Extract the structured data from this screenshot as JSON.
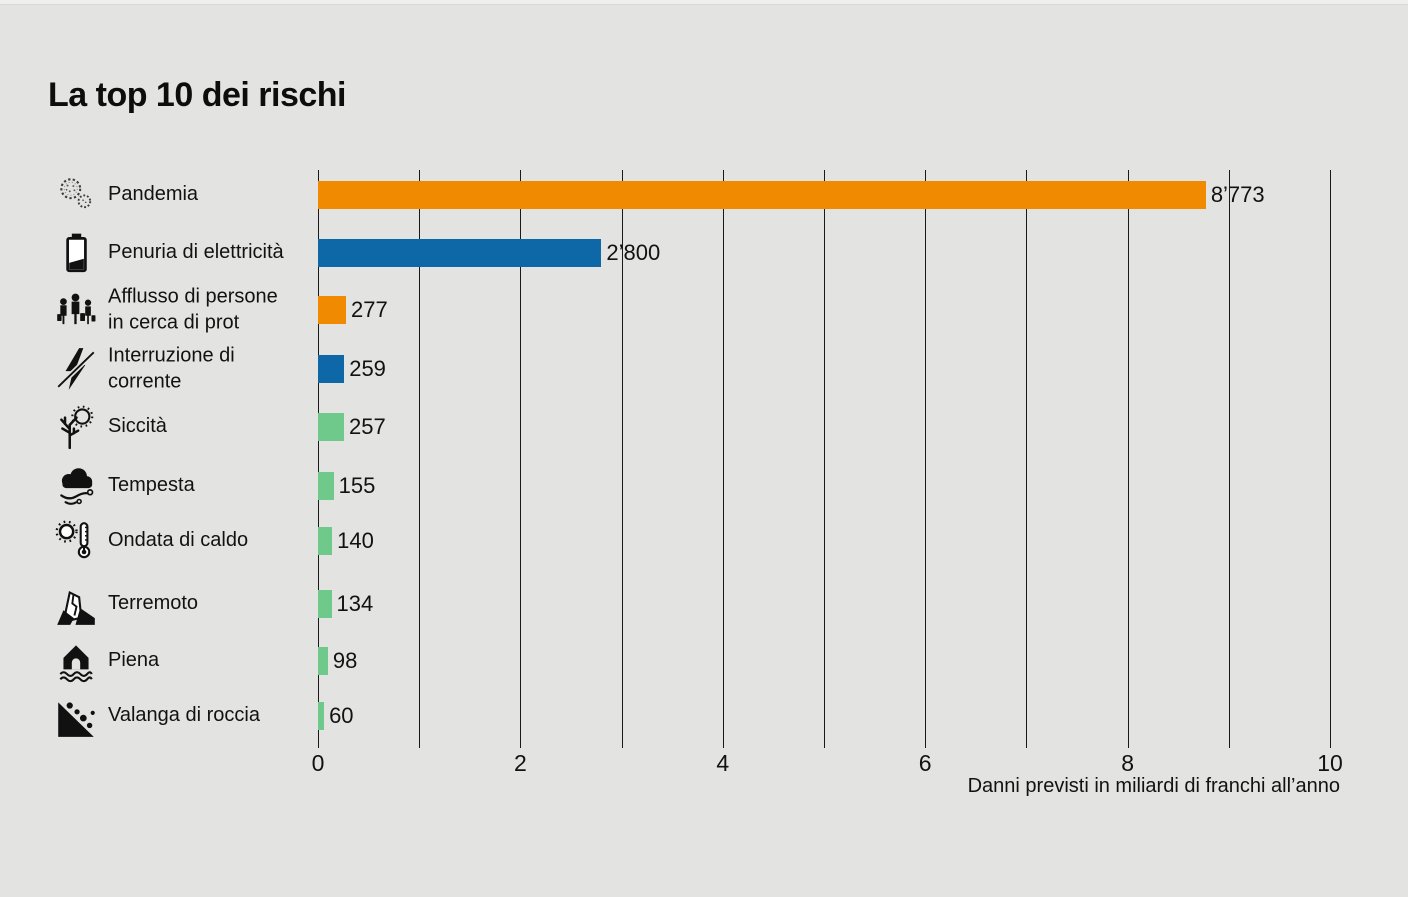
{
  "page": {
    "title": "La top 10 dei rischi"
  },
  "colors": {
    "background": "#E3E3E1",
    "orange": "#F08A00",
    "blue": "#0E67A6",
    "green": "#6EC98B",
    "text": "#121212",
    "gridline": "#1A1A1A"
  },
  "chart_data": {
    "type": "bar",
    "orientation": "horizontal",
    "title": "La top 10 dei rischi",
    "xlabel": "Danni previsti in miliardi di franchi all’anno",
    "xlim": [
      0,
      10
    ],
    "grid": "vertical-only",
    "legend": "none",
    "xticks": [
      0,
      1,
      2,
      3,
      4,
      5,
      6,
      7,
      8,
      9,
      10
    ],
    "xtick_labels": [
      "0",
      "",
      "2",
      "",
      "4",
      "",
      "6",
      "",
      "8",
      "",
      "10"
    ],
    "categories": [
      "Pandemia",
      "Penuria di elettricità",
      "Afflusso di persone in cerca di prot",
      "Interruzione di corrente",
      "Siccità",
      "Tempesta",
      "Ondata di caldo",
      "Terremoto",
      "Piena",
      "Valanga di roccia"
    ],
    "values_millions": [
      8773,
      2800,
      277,
      259,
      257,
      155,
      140,
      134,
      98,
      60
    ],
    "values_billions": [
      8.773,
      2.8,
      0.277,
      0.259,
      0.257,
      0.155,
      0.14,
      0.134,
      0.098,
      0.06
    ],
    "value_labels": [
      "8’773",
      "2’800",
      "277",
      "259",
      "257",
      "155",
      "140",
      "134",
      "98",
      "60"
    ],
    "bar_colors": [
      "#F08A00",
      "#0E67A6",
      "#F08A00",
      "#0E67A6",
      "#6EC98B",
      "#6EC98B",
      "#6EC98B",
      "#6EC98B",
      "#6EC98B",
      "#6EC98B"
    ]
  },
  "rows": [
    {
      "label": "Pandemia",
      "icon": "virus-icon",
      "value_label": "8’773",
      "value_millions": 8773,
      "color": "#F08A00"
    },
    {
      "label": "Penuria di elettricità",
      "icon": "battery-low-icon",
      "value_label": "2’800",
      "value_millions": 2800,
      "color": "#0E67A6"
    },
    {
      "label": "Afflusso di persone\nin cerca di prot",
      "icon": "refugees-icon",
      "value_label": "277",
      "value_millions": 277,
      "color": "#F08A00"
    },
    {
      "label": "Interruzione di\ncorrente",
      "icon": "power-outage-icon",
      "value_label": "259",
      "value_millions": 259,
      "color": "#0E67A6"
    },
    {
      "label": "Siccità",
      "icon": "drought-icon",
      "value_label": "257",
      "value_millions": 257,
      "color": "#6EC98B"
    },
    {
      "label": "Tempesta",
      "icon": "storm-icon",
      "value_label": "155",
      "value_millions": 155,
      "color": "#6EC98B"
    },
    {
      "label": "Ondata di caldo",
      "icon": "heatwave-icon",
      "value_label": "140",
      "value_millions": 140,
      "color": "#6EC98B"
    },
    {
      "label": "Terremoto",
      "icon": "earthquake-icon",
      "value_label": "134",
      "value_millions": 134,
      "color": "#6EC98B"
    },
    {
      "label": "Piena",
      "icon": "flood-icon",
      "value_label": "98",
      "value_millions": 98,
      "color": "#6EC98B"
    },
    {
      "label": "Valanga di roccia",
      "icon": "rockfall-icon",
      "value_label": "60",
      "value_millions": 60,
      "color": "#6EC98B"
    }
  ],
  "axis": {
    "label": "Danni previsti in miliardi di franchi all’anno"
  }
}
